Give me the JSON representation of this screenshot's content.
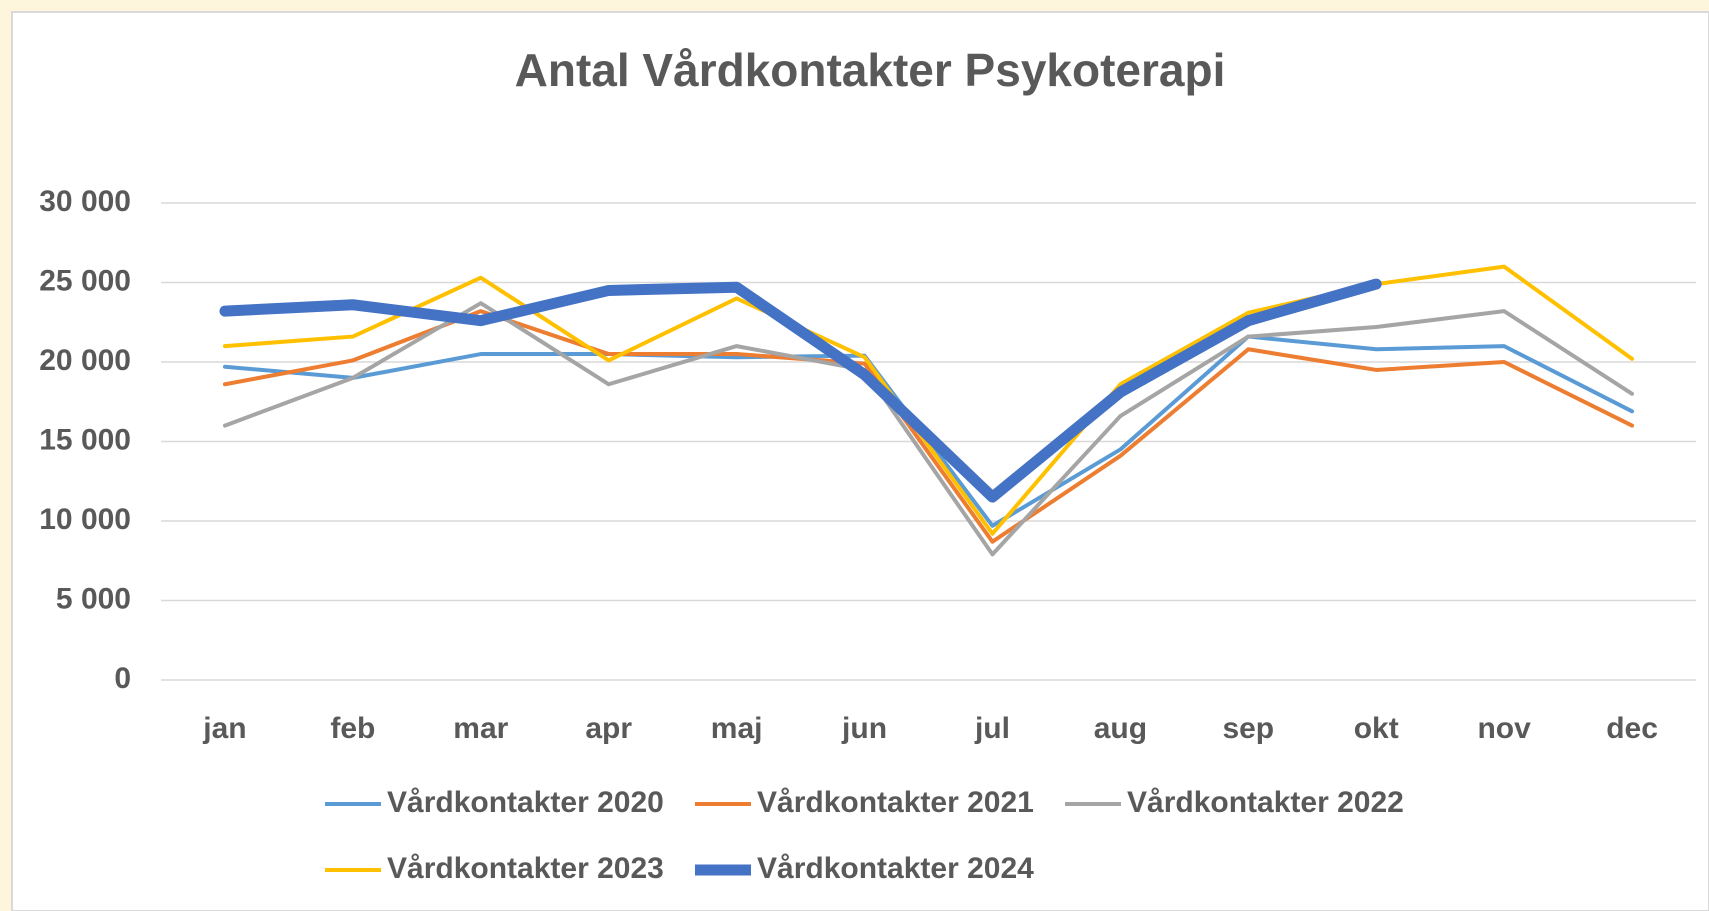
{
  "chart_data": {
    "type": "line",
    "title": "Antal Vårdkontakter Psykoterapi",
    "categories": [
      "jan",
      "feb",
      "mar",
      "apr",
      "maj",
      "jun",
      "jul",
      "aug",
      "sep",
      "okt",
      "nov",
      "dec"
    ],
    "series": [
      {
        "name": "Vårdkontakter 2020",
        "color": "#5b9bd5",
        "linewidth": 4,
        "values": [
          19700,
          19000,
          20500,
          20500,
          20300,
          20400,
          9700,
          14500,
          21600,
          20800,
          21000,
          16900
        ]
      },
      {
        "name": "Vårdkontakter 2021",
        "color": "#ed7d31",
        "linewidth": 4,
        "values": [
          18600,
          20100,
          23200,
          20500,
          20500,
          19900,
          8700,
          14100,
          20800,
          19500,
          20000,
          16000
        ]
      },
      {
        "name": "Vårdkontakter 2022",
        "color": "#a5a5a5",
        "linewidth": 4,
        "values": [
          16000,
          19000,
          23700,
          18600,
          21000,
          19500,
          7900,
          16600,
          21600,
          22200,
          23200,
          18000
        ]
      },
      {
        "name": "Vårdkontakter 2023",
        "color": "#ffc000",
        "linewidth": 4,
        "values": [
          21000,
          21600,
          25300,
          20100,
          24000,
          20300,
          9200,
          18600,
          23100,
          24900,
          26000,
          20200
        ]
      },
      {
        "name": "Vårdkontakter 2024",
        "color": "#4472c4",
        "linewidth": 11,
        "values": [
          23200,
          23600,
          22600,
          24500,
          24700,
          19200,
          11500,
          18100,
          22600,
          24900,
          null,
          null
        ]
      }
    ],
    "ylim": [
      0,
      30000
    ],
    "yticks": [
      0,
      {
        "value": 5000,
        "label": "5 000"
      },
      {
        "value": 10000,
        "label": "10 000"
      },
      {
        "value": 15000,
        "label": "15 000"
      },
      {
        "value": 20000,
        "label": "20 000"
      },
      {
        "value": 25000,
        "label": "25 000"
      },
      {
        "value": 30000,
        "label": "30 000"
      }
    ],
    "grid": true,
    "legend": "bottom"
  }
}
